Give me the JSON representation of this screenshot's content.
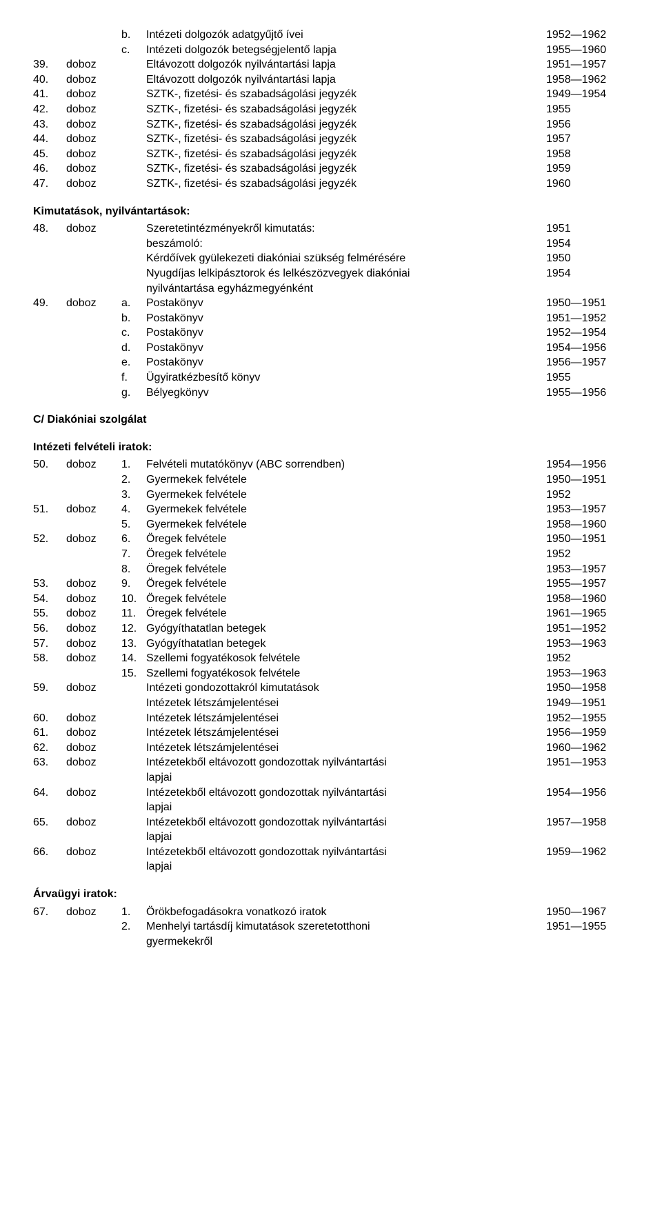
{
  "section1": {
    "rows": [
      {
        "c1": "",
        "c2": "",
        "c3": "b.",
        "c4": "Intézeti dolgozók adatgyűjtő ívei",
        "c5": "1952—1962"
      },
      {
        "c1": "",
        "c2": "",
        "c3": "c.",
        "c4": "Intézeti dolgozók betegségjelentő lapja",
        "c5": "1955—1960"
      },
      {
        "c1": "39.",
        "c2": "doboz",
        "c3": "",
        "c4": "Eltávozott dolgozók nyilvántartási lapja",
        "c5": "1951—1957"
      },
      {
        "c1": "40.",
        "c2": "doboz",
        "c3": "",
        "c4": "Eltávozott dolgozók nyilvántartási lapja",
        "c5": "1958—1962"
      },
      {
        "c1": "41.",
        "c2": "doboz",
        "c3": "",
        "c4": "SZTK-, fizetési- és szabadságolási jegyzék",
        "c5": "1949—1954"
      },
      {
        "c1": "42.",
        "c2": "doboz",
        "c3": "",
        "c4": "SZTK-, fizetési- és szabadságolási jegyzék",
        "c5": "1955"
      },
      {
        "c1": "43.",
        "c2": "doboz",
        "c3": "",
        "c4": "SZTK-, fizetési- és szabadságolási jegyzék",
        "c5": "1956"
      },
      {
        "c1": "44.",
        "c2": "doboz",
        "c3": "",
        "c4": "SZTK-, fizetési- és szabadságolási jegyzék",
        "c5": "1957"
      },
      {
        "c1": "45.",
        "c2": "doboz",
        "c3": "",
        "c4": "SZTK-, fizetési- és szabadságolási jegyzék",
        "c5": "1958"
      },
      {
        "c1": "46.",
        "c2": "doboz",
        "c3": "",
        "c4": "SZTK-, fizetési- és szabadságolási jegyzék",
        "c5": "1959"
      },
      {
        "c1": "47.",
        "c2": "doboz",
        "c3": "",
        "c4": "SZTK-, fizetési- és szabadságolási jegyzék",
        "c5": "1960"
      }
    ]
  },
  "heading1": "Kimutatások, nyilvántartások:",
  "section2": {
    "rows": [
      {
        "c1": "48.",
        "c2": "doboz",
        "c3": "",
        "c4": "Szeretetintézményekről kimutatás:",
        "c5": "1951"
      },
      {
        "c1": "",
        "c2": "",
        "c3": "",
        "c4": "beszámoló:",
        "c5": "1954"
      },
      {
        "c1": "",
        "c2": "",
        "c3": "",
        "c4": "Kérdőívek gyülekezeti diakóniai szükség felmérésére",
        "c5": "1950"
      },
      {
        "c1": "",
        "c2": "",
        "c3": "",
        "c4": "Nyugdíjas lelkipásztorok és lelkészözvegyek diakóniai",
        "c5": "1954"
      },
      {
        "c1": "",
        "c2": "",
        "c3": "",
        "c4": "nyilvántartása egyházmegyénként",
        "c5": ""
      },
      {
        "c1": "49.",
        "c2": "doboz",
        "c3": "a.",
        "c4": "Postakönyv",
        "c5": "1950—1951"
      },
      {
        "c1": "",
        "c2": "",
        "c3": "b.",
        "c4": "Postakönyv",
        "c5": "1951—1952"
      },
      {
        "c1": "",
        "c2": "",
        "c3": "c.",
        "c4": "Postakönyv",
        "c5": "1952—1954"
      },
      {
        "c1": "",
        "c2": "",
        "c3": "d.",
        "c4": "Postakönyv",
        "c5": "1954—1956"
      },
      {
        "c1": "",
        "c2": "",
        "c3": "e.",
        "c4": "Postakönyv",
        "c5": "1956—1957"
      },
      {
        "c1": "",
        "c2": "",
        "c3": "f.",
        "c4": "Ügyiratkézbesítő könyv",
        "c5": "1955"
      },
      {
        "c1": "",
        "c2": "",
        "c3": "g.",
        "c4": "Bélyegkönyv",
        "c5": "1955—1956"
      }
    ]
  },
  "heading2": "C/ Diakóniai szolgálat",
  "heading3": "Intézeti felvételi iratok:",
  "section3": {
    "rows": [
      {
        "c1": "50.",
        "c2": "doboz",
        "c3": "1.",
        "c4": "Felvételi mutatókönyv (ABC sorrendben)",
        "c5": "1954—1956"
      },
      {
        "c1": "",
        "c2": "",
        "c3": "2.",
        "c4": "Gyermekek felvétele",
        "c5": "1950—1951"
      },
      {
        "c1": "",
        "c2": "",
        "c3": "3.",
        "c4": "Gyermekek felvétele",
        "c5": "1952"
      },
      {
        "c1": "51.",
        "c2": "doboz",
        "c3": "4.",
        "c4": "Gyermekek felvétele",
        "c5": "1953—1957"
      },
      {
        "c1": "",
        "c2": "",
        "c3": "5.",
        "c4": "Gyermekek felvétele",
        "c5": "1958—1960"
      },
      {
        "c1": "52.",
        "c2": "doboz",
        "c3": "6.",
        "c4": "Öregek felvétele",
        "c5": "1950—1951"
      },
      {
        "c1": "",
        "c2": "",
        "c3": "7.",
        "c4": "Öregek felvétele",
        "c5": "1952"
      },
      {
        "c1": "",
        "c2": "",
        "c3": "8.",
        "c4": "Öregek felvétele",
        "c5": "1953—1957"
      },
      {
        "c1": "53.",
        "c2": "doboz",
        "c3": "9.",
        "c4": "Öregek felvétele",
        "c5": "1955—1957"
      },
      {
        "c1": "54.",
        "c2": "doboz",
        "c3": "10.",
        "c4": "Öregek felvétele",
        "c5": "1958—1960"
      },
      {
        "c1": "55.",
        "c2": "doboz",
        "c3": "11.",
        "c4": "Öregek felvétele",
        "c5": "1961—1965"
      },
      {
        "c1": "56.",
        "c2": "doboz",
        "c3": "12.",
        "c4": "Gyógyíthatatlan betegek",
        "c5": "1951—1952"
      },
      {
        "c1": "57.",
        "c2": "doboz",
        "c3": "13.",
        "c4": "Gyógyíthatatlan betegek",
        "c5": "1953—1963"
      },
      {
        "c1": "58.",
        "c2": "doboz",
        "c3": "14.",
        "c4": "Szellemi fogyatékosok felvétele",
        "c5": "1952"
      },
      {
        "c1": "",
        "c2": "",
        "c3": "15.",
        "c4": "Szellemi fogyatékosok felvétele",
        "c5": "1953—1963"
      },
      {
        "c1": "59.",
        "c2": "doboz",
        "c3": "",
        "c4": "Intézeti gondozottakról kimutatások",
        "c5": "1950—1958"
      },
      {
        "c1": "",
        "c2": "",
        "c3": "",
        "c4": "Intézetek létszámjelentései",
        "c5": "1949—1951"
      },
      {
        "c1": "60.",
        "c2": "doboz",
        "c3": "",
        "c4": "Intézetek létszámjelentései",
        "c5": "1952—1955"
      },
      {
        "c1": "61.",
        "c2": "doboz",
        "c3": "",
        "c4": "Intézetek létszámjelentései",
        "c5": "1956—1959"
      },
      {
        "c1": "62.",
        "c2": "doboz",
        "c3": "",
        "c4": "Intézetek létszámjelentései",
        "c5": "1960—1962"
      },
      {
        "c1": "63.",
        "c2": "doboz",
        "c3": "",
        "c4": "Intézetekből eltávozott gondozottak nyilvántartási",
        "c5": "1951—1953"
      },
      {
        "c1": "",
        "c2": "",
        "c3": "",
        "c4": "lapjai",
        "c5": ""
      },
      {
        "c1": "64.",
        "c2": "doboz",
        "c3": "",
        "c4": "Intézetekből eltávozott gondozottak nyilvántartási",
        "c5": "1954—1956"
      },
      {
        "c1": "",
        "c2": "",
        "c3": "",
        "c4": "lapjai",
        "c5": ""
      },
      {
        "c1": "65.",
        "c2": "doboz",
        "c3": "",
        "c4": "Intézetekből eltávozott gondozottak nyilvántartási",
        "c5": "1957—1958"
      },
      {
        "c1": "",
        "c2": "",
        "c3": "",
        "c4": "lapjai",
        "c5": ""
      },
      {
        "c1": "66.",
        "c2": "doboz",
        "c3": "",
        "c4": "Intézetekből eltávozott gondozottak nyilvántartási",
        "c5": "1959—1962"
      },
      {
        "c1": "",
        "c2": "",
        "c3": "",
        "c4": "lapjai",
        "c5": ""
      }
    ]
  },
  "heading4": "Árvaügyi iratok:",
  "section4": {
    "rows": [
      {
        "c1": "67.",
        "c2": "doboz",
        "c3": "1.",
        "c4": "Örökbefogadásokra vonatkozó iratok",
        "c5": "1950—1967"
      },
      {
        "c1": "",
        "c2": "",
        "c3": "2.",
        "c4": "Menhelyi tartásdíj kimutatások szeretetotthoni",
        "c5": "1951—1955"
      },
      {
        "c1": "",
        "c2": "",
        "c3": "",
        "c4": "gyermekekről",
        "c5": ""
      }
    ]
  }
}
